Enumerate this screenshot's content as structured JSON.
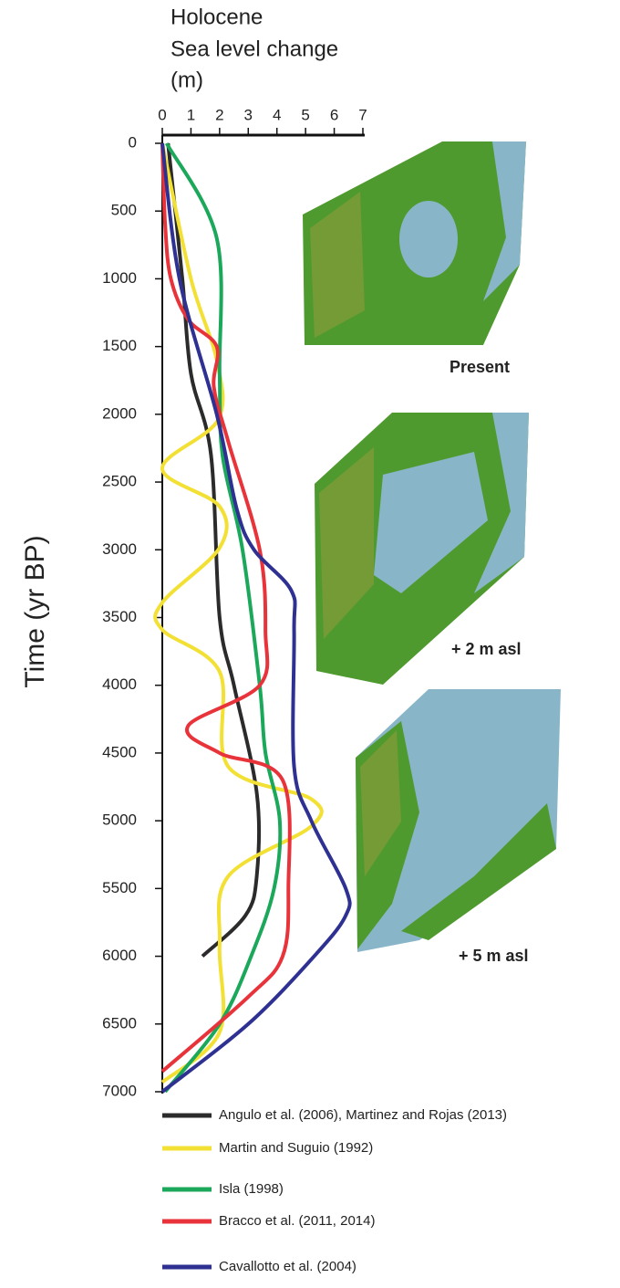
{
  "chart_data": {
    "type": "line",
    "xlabel": [
      "Holocene",
      "Sea level  change",
      "(m)"
    ],
    "ylabel": "Time (yr BP)",
    "xlim": [
      0,
      7
    ],
    "xticks": [
      0,
      1,
      2,
      3,
      4,
      5,
      6,
      7
    ],
    "ylim": [
      0,
      7000
    ],
    "yticks": [
      0,
      500,
      1000,
      1500,
      2000,
      2500,
      3000,
      3500,
      4000,
      4500,
      5000,
      5500,
      6000,
      6500,
      7000
    ],
    "series": [
      {
        "name": "Angulo et al. (2006), Martinez and Rojas (2013)",
        "color": "#2b2b2b",
        "time": [
          0,
          1000,
          1700,
          2300,
          3500,
          4000,
          4800,
          5400,
          5700,
          6000
        ],
        "values": [
          0.2,
          0.7,
          1.0,
          1.7,
          2.0,
          2.5,
          3.3,
          3.3,
          2.9,
          1.4
        ]
      },
      {
        "name": "Martin and Suguio (1992)",
        "color": "#f3e034",
        "time": [
          0,
          1000,
          1600,
          2040,
          2400,
          2680,
          2985,
          3390,
          3590,
          3900,
          4600,
          4840,
          5040,
          5410,
          5920,
          6560,
          6930
        ],
        "values": [
          0,
          1.0,
          1.9,
          1.95,
          0,
          2.0,
          2.0,
          0,
          0,
          2.0,
          2.3,
          5.2,
          5.2,
          2.3,
          2.0,
          2.0,
          0
        ]
      },
      {
        "name": "Isla (1998)",
        "color": "#1ba85a",
        "time": [
          0,
          700,
          1700,
          2300,
          3000,
          4000,
          4500,
          5000,
          5500,
          6000,
          6500,
          7000
        ],
        "values": [
          0.15,
          1.9,
          2.0,
          2.1,
          2.8,
          3.4,
          3.6,
          4.1,
          3.9,
          3.1,
          2.0,
          0.1
        ]
      },
      {
        "name": "Bracco et al. (2011, 2014)",
        "color": "#e8333b",
        "time": [
          0,
          600,
          1000,
          1300,
          1500,
          1800,
          2200,
          3000,
          3600,
          4000,
          4300,
          4500,
          4700,
          5500,
          6000,
          6300,
          6850
        ],
        "values": [
          0,
          0.1,
          0.3,
          0.9,
          1.9,
          1.8,
          2.3,
          3.4,
          3.6,
          3.4,
          0.9,
          2.0,
          4.2,
          4.4,
          4.2,
          3.0,
          0
        ]
      },
      {
        "name": "Cavallotto et al. (2004)",
        "color": "#2e3192",
        "time": [
          0,
          1000,
          2000,
          2700,
          3000,
          3300,
          3600,
          4600,
          5000,
          5500,
          5700,
          6000,
          6500,
          7000
        ],
        "values": [
          0,
          0.6,
          1.9,
          2.6,
          3.2,
          4.5,
          4.6,
          4.6,
          5.2,
          6.4,
          6.4,
          5.3,
          3.0,
          0
        ]
      }
    ],
    "map_labels": [
      "Present",
      "+ 2 m asl",
      "+ 5 m asl"
    ]
  }
}
